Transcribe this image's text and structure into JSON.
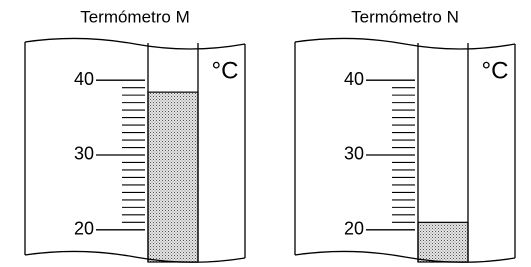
{
  "thermometers": [
    {
      "title": "Termómetro M",
      "unit": "°C",
      "reading": 38.4,
      "ylim": [
        15.7,
        44.7
      ],
      "major_ticks": [
        20,
        30,
        40
      ],
      "minor_ticks": [
        21,
        22,
        23,
        24,
        25,
        26,
        27,
        28,
        29,
        31,
        32,
        33,
        34,
        35,
        36,
        37,
        38,
        39
      ]
    },
    {
      "title": "Termómetro N",
      "unit": "°C",
      "reading": 21,
      "ylim": [
        15.7,
        44.7
      ],
      "major_ticks": [
        20,
        30,
        40
      ],
      "minor_ticks": [
        21,
        22,
        23,
        24,
        25,
        26,
        27,
        28,
        29,
        31,
        32,
        33,
        34,
        35,
        36,
        37,
        38,
        39
      ]
    }
  ]
}
